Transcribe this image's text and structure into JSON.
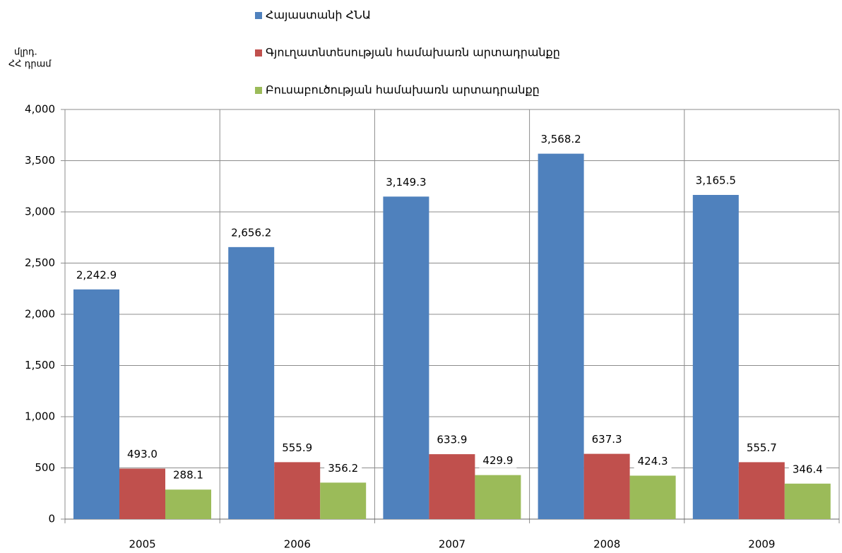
{
  "chart_data": {
    "type": "bar",
    "y_label": [
      "մլրդ.",
      "ՀՀ դրամ"
    ],
    "categories": [
      "2005",
      "2006",
      "2007",
      "2008",
      "2009"
    ],
    "series": [
      {
        "name": "Հայաստանի ՀՆԱ",
        "color": "#4f81bd",
        "values": [
          2242.9,
          2656.2,
          3149.3,
          3568.2,
          3165.5
        ],
        "value_labels": [
          "2,242.9",
          "2,656.2",
          "3,149.3",
          "3,568.2",
          "3,165.5"
        ]
      },
      {
        "name": "Գյուղատնտեսության համախառն արտադրանքը",
        "color": "#c0504d",
        "values": [
          493.0,
          555.9,
          633.9,
          637.3,
          555.7
        ],
        "value_labels": [
          "493.0",
          "555.9",
          "633.9",
          "637.3",
          "555.7"
        ]
      },
      {
        "name": "Բուսաբուծության համախառն արտադրանքը",
        "color": "#9bbb59",
        "values": [
          288.1,
          356.2,
          429.9,
          424.3,
          346.4
        ],
        "value_labels": [
          "288.1",
          "356.2",
          "429.9",
          "424.3",
          "346.4"
        ]
      }
    ],
    "ylim": [
      0,
      4000
    ],
    "yticks": [
      0,
      500,
      {
        "value": 1000,
        "label": "1,000"
      },
      {
        "value": 1500,
        "label": "1,500"
      },
      {
        "value": 2000,
        "label": "2,000"
      },
      {
        "value": 2500,
        "label": "2,500"
      },
      {
        "value": 3000,
        "label": "3,000"
      },
      {
        "value": 3500,
        "label": "3,500"
      },
      {
        "value": 4000,
        "label": "4,000"
      }
    ],
    "grid": true,
    "legend": "top"
  }
}
